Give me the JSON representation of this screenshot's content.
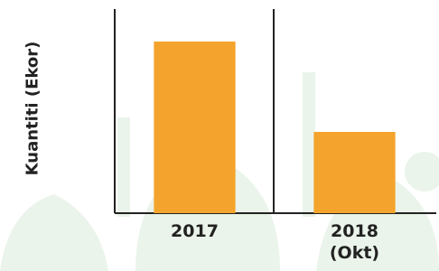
{
  "chart_data": {
    "type": "bar",
    "y_label": "Kuantiti (Ekor)",
    "categories": [
      "2017",
      "2018\n(Okt)"
    ],
    "values": [
      190,
      90
    ],
    "color": "#f4a42c",
    "ylim": [
      0,
      226
    ]
  }
}
